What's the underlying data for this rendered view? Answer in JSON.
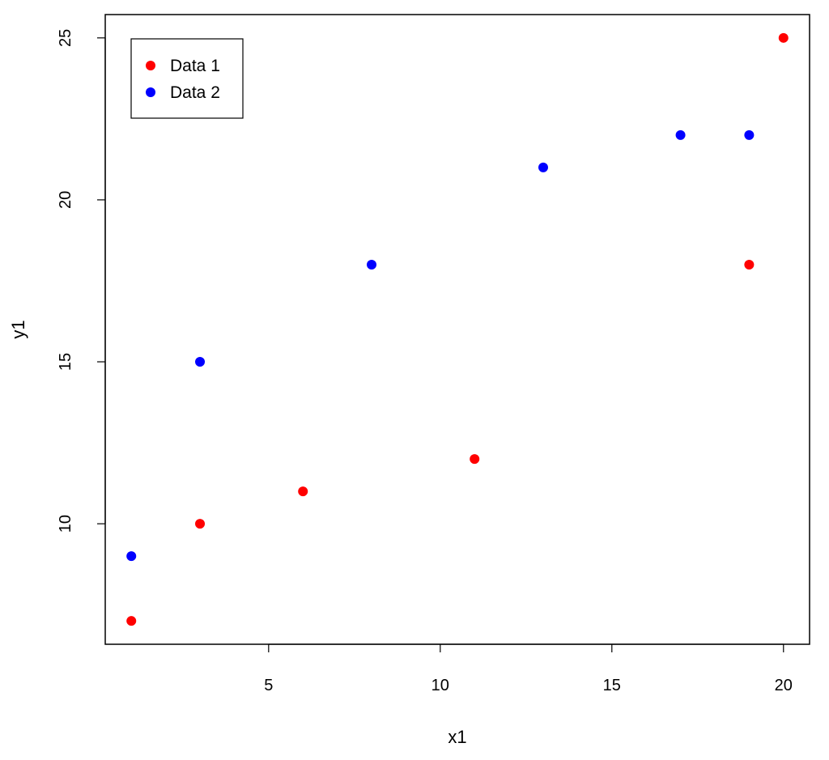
{
  "chart_data": {
    "type": "scatter",
    "title": "",
    "xlabel": "x1",
    "ylabel": "y1",
    "xlim": [
      0.24,
      20.76
    ],
    "ylim": [
      6.28,
      25.72
    ],
    "xticks": [
      5,
      10,
      15,
      20
    ],
    "yticks": [
      10,
      15,
      20,
      25
    ],
    "grid": false,
    "legend_position": "top-left",
    "series": [
      {
        "name": "Data 1",
        "color": "#ff0000",
        "x": [
          1,
          3,
          6,
          11,
          19,
          20
        ],
        "y": [
          7,
          10,
          11,
          12,
          18,
          25
        ]
      },
      {
        "name": "Data 2",
        "color": "#0000ff",
        "x": [
          1,
          3,
          8,
          13,
          17,
          19
        ],
        "y": [
          9,
          15,
          18,
          21,
          22,
          22
        ]
      }
    ]
  }
}
